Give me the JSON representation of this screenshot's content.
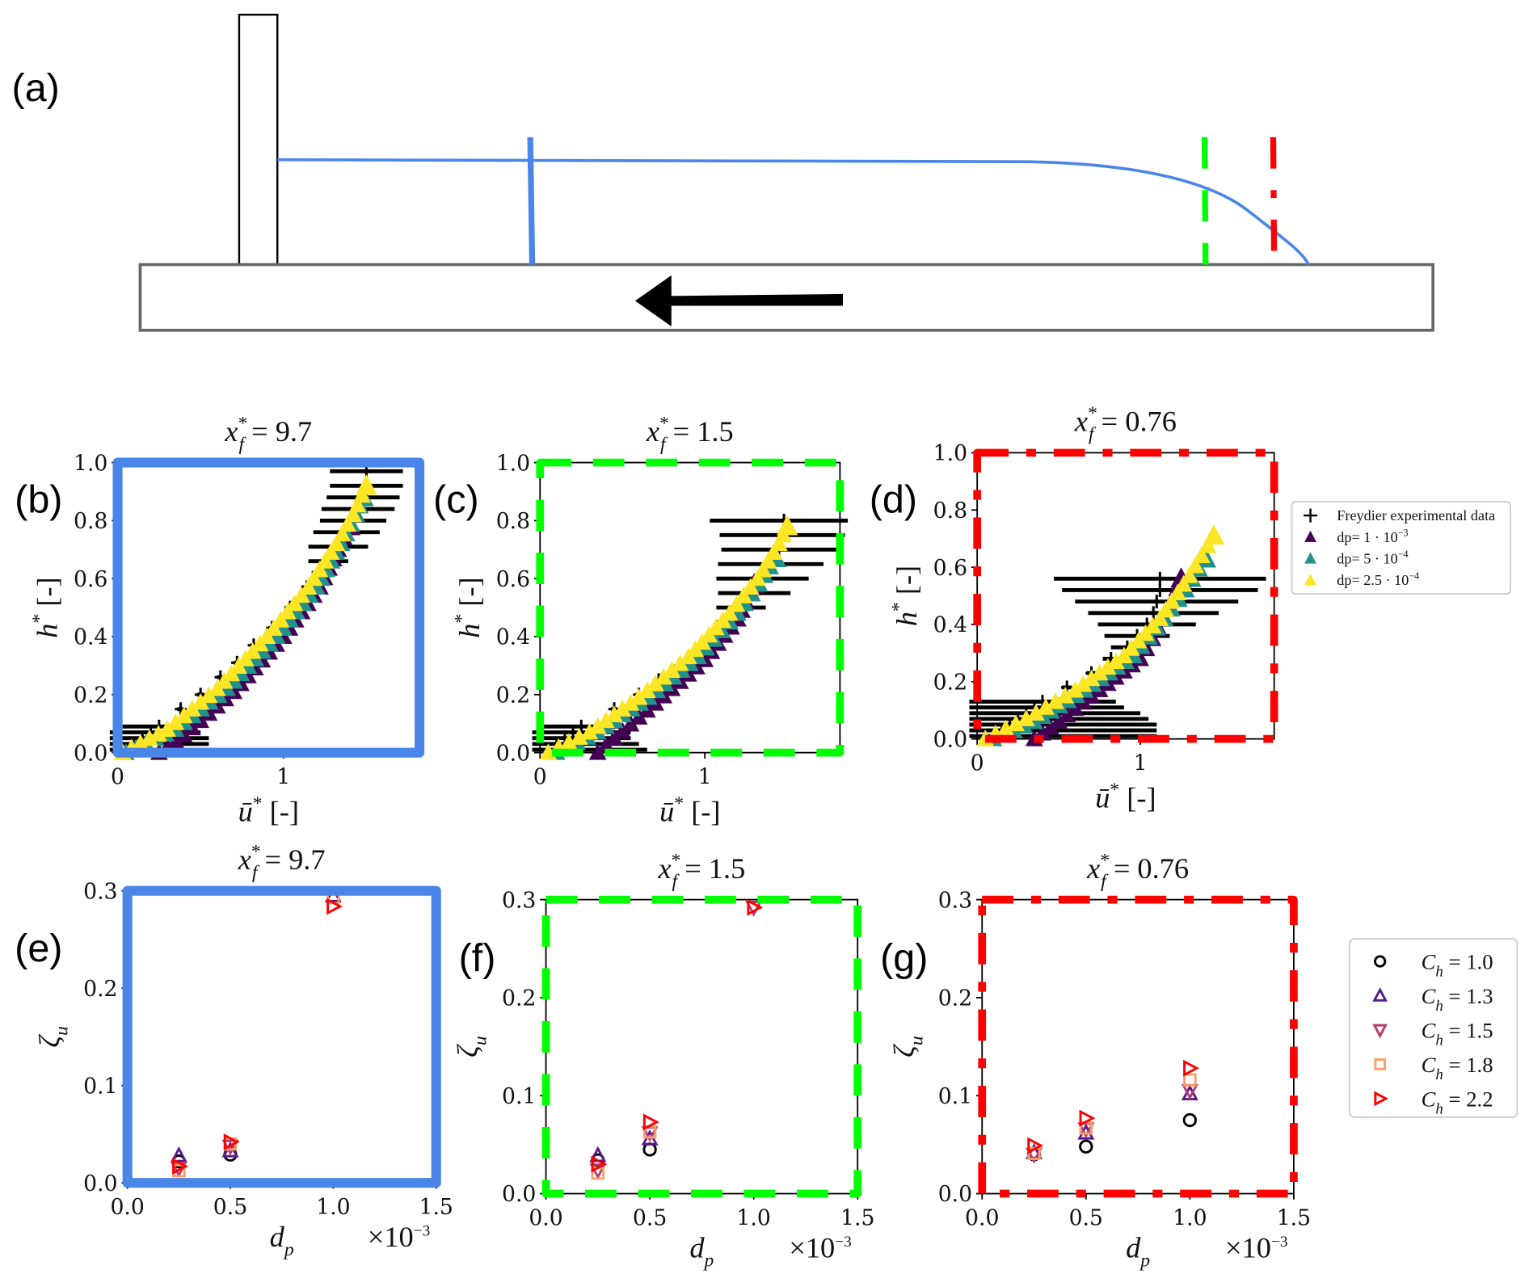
{
  "panel_a": {
    "label": "(a)",
    "colors": {
      "surface": "#4a86e8",
      "probe_b": "#4a86e8",
      "probe_c": "#00ff00",
      "probe_d": "#ff0000",
      "arrow": "#000000"
    }
  },
  "legend_profiles": {
    "items": [
      {
        "text": "Freydier experimental data",
        "sup": "",
        "color": "#000000",
        "marker": "plus-errorbar"
      },
      {
        "text": "dp= 1 · 10",
        "sup": "−3",
        "color": "#440154",
        "marker": "triangle-filled"
      },
      {
        "text": "dp= 5 · 10",
        "sup": "−4",
        "color": "#21918c",
        "marker": "triangle-filled"
      },
      {
        "text": "dp= 2.5 · 10",
        "sup": "−4",
        "color": "#fde725",
        "marker": "triangle-filled"
      }
    ]
  },
  "legend_zeta": {
    "items": [
      {
        "var": "C",
        "sub": "h",
        "rest": " = 1.0",
        "color": "#000000",
        "marker": "circle-open"
      },
      {
        "var": "C",
        "sub": "h",
        "rest": " = 1.3",
        "color": "#5a1a8a",
        "marker": "triangle-up-open"
      },
      {
        "var": "C",
        "sub": "h",
        "rest": " = 1.5",
        "color": "#b83a70",
        "marker": "triangle-down-open"
      },
      {
        "var": "C",
        "sub": "h",
        "rest": " = 1.8",
        "color": "#f8a06a",
        "marker": "square-open"
      },
      {
        "var": "C",
        "sub": "h",
        "rest": " = 2.2",
        "color": "#ff0000",
        "marker": "triangle-right-open"
      }
    ]
  },
  "chart_data": [
    {
      "panel": "(b)",
      "type": "line-scatter",
      "frame": {
        "color": "#4a86e8",
        "style": "solid"
      },
      "title": {
        "var": "x",
        "sup": "*",
        "sub": "f",
        "rest": " = 9.7"
      },
      "xlabel": {
        "var": "ū",
        "sup": "*",
        "rest": " [-]"
      },
      "ylabel": {
        "var": "h",
        "sup": "*",
        "rest": " [-]"
      },
      "xlim": [
        0,
        1.82
      ],
      "ylim": [
        0,
        1.0
      ],
      "xticks": [
        "0",
        "1"
      ],
      "xtick_values": [
        0,
        1
      ],
      "yticks": [
        "0.0",
        "0.2",
        "0.4",
        "0.6",
        "0.8",
        "1.0"
      ],
      "ytick_values": [
        0,
        0.2,
        0.4,
        0.6,
        0.8,
        1.0
      ],
      "experiment": [
        [
          0.05,
          0.01,
          0.35
        ],
        [
          0.1,
          0.03,
          0.45
        ],
        [
          0.15,
          0.05,
          0.4
        ],
        [
          0.2,
          0.07,
          0.3
        ],
        [
          0.25,
          0.09,
          0.22
        ],
        [
          0.38,
          0.15,
          0.02
        ],
        [
          0.5,
          0.2,
          0.02
        ],
        [
          0.62,
          0.26,
          0.02
        ],
        [
          0.72,
          0.31,
          0.02
        ],
        [
          0.82,
          0.37,
          0.02
        ],
        [
          0.93,
          0.43,
          0.02
        ],
        [
          1.04,
          0.5,
          0.03
        ],
        [
          1.14,
          0.57,
          0.03
        ],
        [
          1.22,
          0.62,
          0.05
        ],
        [
          1.27,
          0.66,
          0.12
        ],
        [
          1.33,
          0.71,
          0.18
        ],
        [
          1.38,
          0.76,
          0.2
        ],
        [
          1.42,
          0.8,
          0.2
        ],
        [
          1.45,
          0.84,
          0.22
        ],
        [
          1.48,
          0.88,
          0.22
        ],
        [
          1.5,
          0.92,
          0.22
        ],
        [
          1.5,
          0.97,
          0.22
        ]
      ],
      "series": [
        {
          "color": "#440154",
          "points": [
            [
              0.25,
              0
            ],
            [
              0.4,
              0.06
            ],
            [
              0.7,
              0.21
            ],
            [
              1.0,
              0.4
            ],
            [
              1.22,
              0.57
            ],
            [
              1.33,
              0.7
            ],
            [
              1.4,
              0.78
            ]
          ]
        },
        {
          "color": "#21918c",
          "points": [
            [
              0.05,
              0
            ],
            [
              0.35,
              0.08
            ],
            [
              0.66,
              0.22
            ],
            [
              0.96,
              0.4
            ],
            [
              1.2,
              0.57
            ],
            [
              1.35,
              0.72
            ],
            [
              1.44,
              0.82
            ],
            [
              1.48,
              0.88
            ]
          ]
        },
        {
          "color": "#fde725",
          "points": [
            [
              0.03,
              0
            ],
            [
              0.3,
              0.08
            ],
            [
              0.6,
              0.22
            ],
            [
              0.9,
              0.4
            ],
            [
              1.15,
              0.57
            ],
            [
              1.32,
              0.72
            ],
            [
              1.42,
              0.82
            ],
            [
              1.5,
              0.92
            ]
          ]
        }
      ]
    },
    {
      "panel": "(c)",
      "type": "line-scatter",
      "frame": {
        "color": "#00ff00",
        "style": "dashed"
      },
      "title": {
        "var": "x",
        "sup": "*",
        "sub": "f",
        "rest": " = 1.5"
      },
      "xlabel": {
        "var": "ū",
        "sup": "*",
        "rest": " [-]"
      },
      "ylabel": {
        "var": "h",
        "sup": "*",
        "rest": " [-]"
      },
      "xlim": [
        0,
        1.82
      ],
      "ylim": [
        0,
        1.0
      ],
      "xticks": [
        "0",
        "1"
      ],
      "xtick_values": [
        0,
        1
      ],
      "yticks": [
        "0.0",
        "0.2",
        "0.4",
        "0.6",
        "0.8",
        "1.0"
      ],
      "ytick_values": [
        0,
        0.2,
        0.4,
        0.6,
        0.8,
        1.0
      ],
      "experiment": [
        [
          0.05,
          0.01,
          0.6
        ],
        [
          0.1,
          0.03,
          0.5
        ],
        [
          0.15,
          0.05,
          0.4
        ],
        [
          0.2,
          0.07,
          0.35
        ],
        [
          0.25,
          0.09,
          0.25
        ],
        [
          0.45,
          0.15,
          0.02
        ],
        [
          0.6,
          0.2,
          0.02
        ],
        [
          0.72,
          0.25,
          0.02
        ],
        [
          0.85,
          0.3,
          0.02
        ],
        [
          0.95,
          0.35,
          0.02
        ],
        [
          1.05,
          0.4,
          0.03
        ],
        [
          1.15,
          0.45,
          0.08
        ],
        [
          1.22,
          0.5,
          0.15
        ],
        [
          1.3,
          0.55,
          0.22
        ],
        [
          1.35,
          0.6,
          0.28
        ],
        [
          1.4,
          0.65,
          0.32
        ],
        [
          1.45,
          0.7,
          0.35
        ],
        [
          1.47,
          0.75,
          0.38
        ],
        [
          1.48,
          0.8,
          0.45
        ]
      ],
      "series": [
        {
          "color": "#440154",
          "points": [
            [
              0.35,
              0
            ],
            [
              0.45,
              0.05
            ],
            [
              0.7,
              0.17
            ],
            [
              1.0,
              0.32
            ],
            [
              1.2,
              0.46
            ],
            [
              1.3,
              0.58
            ]
          ]
        },
        {
          "color": "#21918c",
          "points": [
            [
              0.1,
              0
            ],
            [
              0.35,
              0.07
            ],
            [
              0.66,
              0.19
            ],
            [
              0.96,
              0.33
            ],
            [
              1.2,
              0.48
            ],
            [
              1.33,
              0.58
            ],
            [
              1.43,
              0.67
            ]
          ]
        },
        {
          "color": "#fde725",
          "points": [
            [
              0.05,
              0
            ],
            [
              0.3,
              0.07
            ],
            [
              0.6,
              0.19
            ],
            [
              0.9,
              0.33
            ],
            [
              1.15,
              0.48
            ],
            [
              1.32,
              0.6
            ],
            [
              1.45,
              0.72
            ],
            [
              1.5,
              0.78
            ]
          ]
        }
      ]
    },
    {
      "panel": "(d)",
      "type": "line-scatter",
      "frame": {
        "color": "#ff0000",
        "style": "dash-dot"
      },
      "title": {
        "var": "x",
        "sup": "*",
        "sub": "f",
        "rest": " = 0.76"
      },
      "xlabel": {
        "var": "ū",
        "sup": "*",
        "rest": " [-]"
      },
      "ylabel": {
        "var": "h",
        "sup": "*",
        "rest": " [-]"
      },
      "xlim": [
        0,
        1.82
      ],
      "ylim": [
        0,
        1.0
      ],
      "xticks": [
        "0",
        "1"
      ],
      "xtick_values": [
        0,
        1
      ],
      "yticks": [
        "0.0",
        "0.2",
        "0.4",
        "0.6",
        "0.8",
        "1.0"
      ],
      "ytick_values": [
        0,
        0.2,
        0.4,
        0.6,
        0.8,
        1.0
      ],
      "experiment": [
        [
          0.1,
          0.01,
          1.0
        ],
        [
          0.15,
          0.03,
          0.95
        ],
        [
          0.2,
          0.05,
          0.9
        ],
        [
          0.25,
          0.07,
          0.8
        ],
        [
          0.3,
          0.09,
          0.7
        ],
        [
          0.35,
          0.11,
          0.55
        ],
        [
          0.4,
          0.13,
          0.45
        ],
        [
          0.55,
          0.18,
          0.03
        ],
        [
          0.7,
          0.23,
          0.03
        ],
        [
          0.82,
          0.28,
          0.05
        ],
        [
          0.92,
          0.32,
          0.1
        ],
        [
          0.98,
          0.36,
          0.2
        ],
        [
          1.04,
          0.4,
          0.3
        ],
        [
          1.08,
          0.44,
          0.4
        ],
        [
          1.1,
          0.48,
          0.5
        ],
        [
          1.12,
          0.52,
          0.6
        ],
        [
          1.12,
          0.56,
          0.65
        ]
      ],
      "series": [
        {
          "color": "#440154",
          "points": [
            [
              0.35,
              0
            ],
            [
              0.45,
              0.04
            ],
            [
              0.7,
              0.15
            ],
            [
              1.0,
              0.28
            ],
            [
              1.15,
              0.42
            ],
            [
              1.25,
              0.56
            ]
          ]
        },
        {
          "color": "#21918c",
          "points": [
            [
              0.1,
              0
            ],
            [
              0.35,
              0.06
            ],
            [
              0.66,
              0.17
            ],
            [
              0.96,
              0.29
            ],
            [
              1.15,
              0.42
            ],
            [
              1.28,
              0.52
            ],
            [
              1.4,
              0.63
            ]
          ]
        },
        {
          "color": "#fde725",
          "points": [
            [
              0.05,
              0
            ],
            [
              0.3,
              0.07
            ],
            [
              0.6,
              0.17
            ],
            [
              0.9,
              0.29
            ],
            [
              1.12,
              0.42
            ],
            [
              1.3,
              0.57
            ],
            [
              1.45,
              0.71
            ]
          ]
        }
      ]
    },
    {
      "panel": "(e)",
      "type": "scatter",
      "frame": {
        "color": "#4a86e8",
        "style": "solid"
      },
      "title": {
        "var": "x",
        "sup": "*",
        "sub": "f",
        "rest": " = 9.7"
      },
      "xlabel": {
        "var": "d",
        "sub": "p"
      },
      "multiplier": {
        "base": "×10",
        "sup": "−3"
      },
      "ylabel": {
        "var": "ζ",
        "sub": "u"
      },
      "xlim": [
        0,
        1.5
      ],
      "ylim": [
        0,
        0.3
      ],
      "xticks": [
        "0.0",
        "0.5",
        "1.0",
        "1.5"
      ],
      "xtick_values": [
        0,
        0.5,
        1.0,
        1.5
      ],
      "yticks": [
        "0.0",
        "0.1",
        "0.2",
        "0.3"
      ],
      "ytick_values": [
        0,
        0.1,
        0.2,
        0.3
      ],
      "series": [
        {
          "x": [
            0.25,
            0.5
          ],
          "y": [
            0.022,
            0.029
          ]
        },
        {
          "x": [
            0.25,
            0.5,
            1.0
          ],
          "y": [
            0.028,
            0.033,
            0.295
          ]
        },
        {
          "x": [
            0.25,
            0.5
          ],
          "y": [
            0.015,
            0.0375
          ]
        },
        {
          "x": [
            0.25,
            0.5,
            1.0
          ],
          "y": [
            0.0125,
            0.04,
            0.293
          ]
        },
        {
          "x": [
            0.25,
            0.5,
            1.0
          ],
          "y": [
            0.017,
            0.042,
            0.284
          ]
        }
      ]
    },
    {
      "panel": "(f)",
      "type": "scatter",
      "frame": {
        "color": "#00ff00",
        "style": "dashed"
      },
      "title": {
        "var": "x",
        "sup": "*",
        "sub": "f",
        "rest": " = 1.5"
      },
      "xlabel": {
        "var": "d",
        "sub": "p"
      },
      "multiplier": {
        "base": "×10",
        "sup": "−3"
      },
      "ylabel": {
        "var": "ζ",
        "sub": "u"
      },
      "xlim": [
        0,
        1.5
      ],
      "ylim": [
        0,
        0.3
      ],
      "xticks": [
        "0.0",
        "0.5",
        "1.0",
        "1.5"
      ],
      "xtick_values": [
        0,
        0.5,
        1.0,
        1.5
      ],
      "yticks": [
        "0.0",
        "0.1",
        "0.2",
        "0.3"
      ],
      "ytick_values": [
        0,
        0.1,
        0.2,
        0.3
      ],
      "series": [
        {
          "x": [
            0.25,
            0.5
          ],
          "y": [
            0.034,
            0.045
          ]
        },
        {
          "x": [
            0.25,
            0.5
          ],
          "y": [
            0.039,
            0.056
          ]
        },
        {
          "x": [
            0.25,
            0.5,
            1.0
          ],
          "y": [
            0.024,
            0.062,
            0.292
          ]
        },
        {
          "x": [
            0.25,
            0.5
          ],
          "y": [
            0.021,
            0.063
          ]
        },
        {
          "x": [
            0.25,
            0.5,
            1.0
          ],
          "y": [
            0.03,
            0.073,
            0.292
          ]
        }
      ]
    },
    {
      "panel": "(g)",
      "type": "scatter",
      "frame": {
        "color": "#ff0000",
        "style": "dash-dot"
      },
      "title": {
        "var": "x",
        "sup": "*",
        "sub": "f",
        "rest": " = 0.76"
      },
      "xlabel": {
        "var": "d",
        "sub": "p"
      },
      "multiplier": {
        "base": "×10",
        "sup": "−3"
      },
      "ylabel": {
        "var": "ζ",
        "sub": "u"
      },
      "xlim": [
        0,
        1.5
      ],
      "ylim": [
        0,
        0.3
      ],
      "xticks": [
        "0.0",
        "0.5",
        "1.0",
        "1.5"
      ],
      "xtick_values": [
        0,
        0.5,
        1.0,
        1.5
      ],
      "yticks": [
        "0.0",
        "0.1",
        "0.2",
        "0.3"
      ],
      "ytick_values": [
        0,
        0.1,
        0.2,
        0.3
      ],
      "series": [
        {
          "x": [
            0.25,
            0.5,
            1.0
          ],
          "y": [
            0.04,
            0.048,
            0.075
          ]
        },
        {
          "x": [
            0.25,
            0.5,
            1.0
          ],
          "y": [
            0.042,
            0.062,
            0.102
          ]
        },
        {
          "x": [
            0.25,
            0.5,
            1.0
          ],
          "y": [
            0.04,
            0.066,
            0.105
          ]
        },
        {
          "x": [
            0.25,
            0.5,
            1.0
          ],
          "y": [
            0.041,
            0.067,
            0.116
          ]
        },
        {
          "x": [
            0.25,
            0.5,
            1.0
          ],
          "y": [
            0.049,
            0.077,
            0.128
          ]
        }
      ]
    }
  ]
}
